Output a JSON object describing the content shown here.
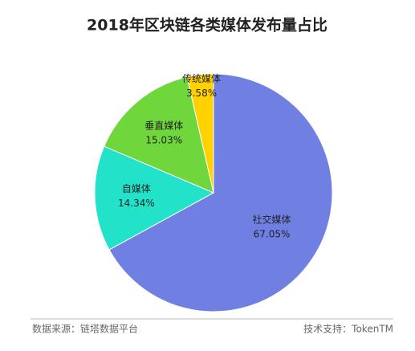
{
  "chart_data": {
    "type": "pie",
    "title": "2018年区块链各类媒体发布量占比",
    "categories": [
      "社交媒体",
      "自媒体",
      "垂直媒体",
      "传统媒体"
    ],
    "values": [
      67.05,
      14.34,
      15.03,
      3.58
    ],
    "value_labels": [
      "67.05%",
      "14.34%",
      "15.03%",
      "3.58%"
    ],
    "colors": [
      "#6f80e2",
      "#22e2c9",
      "#6fd63b",
      "#ffd200"
    ]
  },
  "footer": {
    "source": "数据来源：链塔数据平台",
    "support": "技术支持：TokenTM"
  }
}
